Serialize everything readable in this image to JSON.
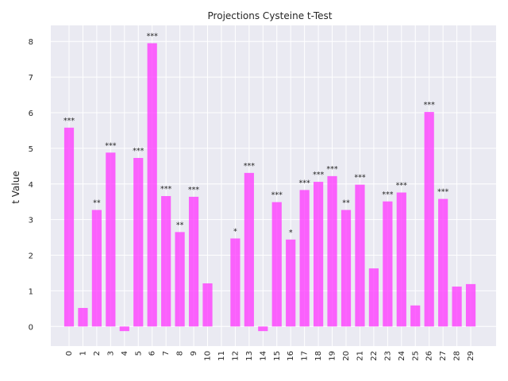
{
  "chart_data": {
    "type": "bar",
    "title": "Projections Cysteine t-Test",
    "xlabel": "",
    "ylabel": "t Value",
    "ylim": [
      -0.55,
      8.45
    ],
    "yticks": [
      0,
      1,
      2,
      3,
      4,
      5,
      6,
      7,
      8
    ],
    "grid": true,
    "bar_color": "#ff33ff",
    "background_color": "#eaeaf2",
    "categories": [
      "0",
      "1",
      "2",
      "3",
      "4",
      "5",
      "6",
      "7",
      "8",
      "9",
      "10",
      "11",
      "12",
      "13",
      "14",
      "15",
      "16",
      "17",
      "18",
      "19",
      "20",
      "21",
      "22",
      "23",
      "24",
      "25",
      "26",
      "27",
      "28",
      "29"
    ],
    "values": [
      5.58,
      0.52,
      3.27,
      4.88,
      -0.13,
      4.73,
      7.95,
      3.66,
      2.65,
      3.64,
      1.21,
      0.0,
      2.47,
      4.31,
      -0.13,
      3.49,
      2.44,
      3.83,
      4.06,
      4.22,
      3.27,
      3.98,
      1.63,
      3.51,
      3.76,
      0.59,
      6.02,
      3.58,
      1.12,
      1.19
    ],
    "significance": [
      "***",
      "",
      "**",
      "***",
      "",
      "***",
      "***",
      "***",
      "**",
      "***",
      "",
      "",
      "*",
      "***",
      "",
      "***",
      "*",
      "***",
      "***",
      "***",
      "**",
      "***",
      "",
      "***",
      "***",
      "",
      "***",
      "***",
      "",
      ""
    ]
  }
}
